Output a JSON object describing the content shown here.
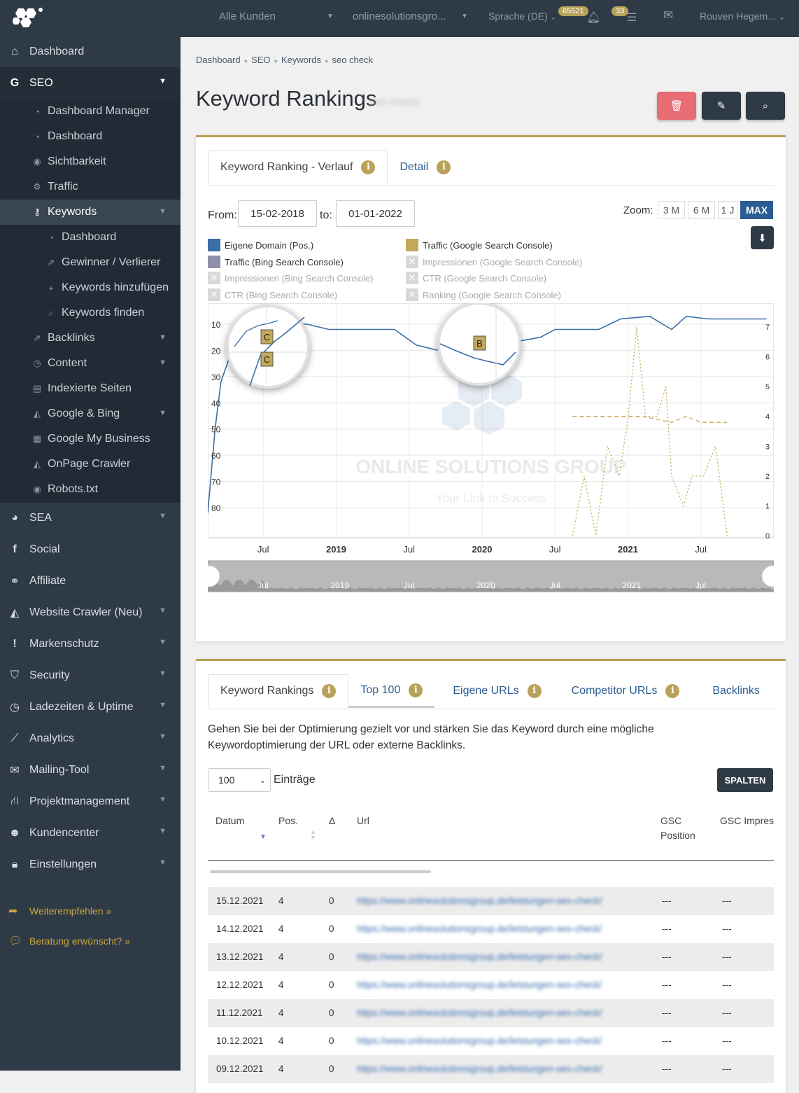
{
  "topbar": {
    "client": "Alle Kunden",
    "project": "onlinesolutionsgro...",
    "language": "Sprache (DE)",
    "notif_count": "65521",
    "task_count": "33",
    "user": "Rouven Hegem..."
  },
  "sidebar": {
    "top": [
      {
        "label": "Dashboard",
        "icon": "home-icon"
      },
      {
        "label": "SEO",
        "icon": "google-icon"
      }
    ],
    "seo_sub": [
      {
        "label": "Dashboard Manager"
      },
      {
        "label": "Dashboard"
      },
      {
        "label": "Sichtbarkeit"
      },
      {
        "label": "Traffic"
      },
      {
        "label": "Keywords"
      }
    ],
    "keywords_sub": [
      {
        "label": "Dashboard"
      },
      {
        "label": "Gewinner / Verlierer"
      },
      {
        "label": "Keywords hinzufügen"
      },
      {
        "label": "Keywords finden"
      }
    ],
    "seo_sub2": [
      {
        "label": "Backlinks"
      },
      {
        "label": "Content"
      },
      {
        "label": "Indexierte Seiten"
      },
      {
        "label": "Google & Bing"
      },
      {
        "label": "Google My Business"
      },
      {
        "label": "OnPage Crawler"
      },
      {
        "label": "Robots.txt"
      }
    ],
    "bottom": [
      {
        "label": "SEA"
      },
      {
        "label": "Social"
      },
      {
        "label": "Affiliate"
      },
      {
        "label": "Website Crawler (Neu)"
      },
      {
        "label": "Markenschutz"
      },
      {
        "label": "Security"
      },
      {
        "label": "Ladezeiten & Uptime"
      },
      {
        "label": "Analytics"
      },
      {
        "label": "Mailing-Tool"
      },
      {
        "label": "Projektmanagement"
      },
      {
        "label": "Kundencenter"
      },
      {
        "label": "Einstellungen"
      }
    ],
    "recommend": "Weiterempfehlen »",
    "consult": "Beratung erwünscht? »"
  },
  "breadcrumb": [
    "Dashboard",
    "SEO",
    "Keywords",
    "seo check"
  ],
  "page": {
    "title": "Keyword Rankings",
    "subtitle": "(seo check)"
  },
  "chart_panel": {
    "tabs": [
      "Keyword Ranking - Verlauf",
      "Detail"
    ],
    "from_label": "From:",
    "from": "15-02-2018",
    "to_label": "to:",
    "to": "01-01-2022",
    "zoom_label": "Zoom:",
    "zoom": [
      "3 M",
      "6 M",
      "1 J",
      "MAX"
    ],
    "legend": [
      {
        "label": "Eigene Domain (Pos.)",
        "color": "#3b6ea5",
        "on": true
      },
      {
        "label": "Traffic (Google Search Console)",
        "color": "#c2a95a",
        "on": true
      },
      {
        "label": "Traffic (Bing Search Console)",
        "color": "#8e90a8",
        "on": true
      },
      {
        "label": "Impressionen (Google Search Console)",
        "on": false
      },
      {
        "label": "Impressionen (Bing Search Console)",
        "on": false
      },
      {
        "label": "CTR (Google Search Console)",
        "on": false
      },
      {
        "label": "CTR (Bing Search Console)",
        "on": false
      },
      {
        "label": "Ranking (Google Search Console)",
        "on": false
      }
    ],
    "watermark": {
      "name": "ONLINE SOLUTIONS GROUP",
      "tagline": "Your Link to Success"
    }
  },
  "chart_data": {
    "type": "line",
    "x_ticks": [
      "Jul",
      "2019",
      "Jul",
      "2020",
      "Jul",
      "2021",
      "Jul"
    ],
    "y_left_ticks": [
      "10",
      "20",
      "30",
      "40",
      "50",
      "60",
      "70",
      "80"
    ],
    "y_right_ticks": [
      "7",
      "6",
      "5",
      "4",
      "3",
      "2",
      "1",
      "0"
    ],
    "navigator_ticks": [
      "Jul",
      "2019",
      "Jul",
      "2020",
      "Jul",
      "2021",
      "Jul"
    ],
    "markers": [
      "C",
      "C",
      "B"
    ],
    "series": [
      {
        "name": "Eigene Domain (Pos.)",
        "axis": "left",
        "points": [
          [
            2018.12,
            82
          ],
          [
            2018.17,
            50
          ],
          [
            2018.21,
            32
          ],
          [
            2018.26,
            24
          ],
          [
            2018.3,
            21
          ],
          [
            2018.36,
            17
          ],
          [
            2018.42,
            12
          ],
          [
            2018.48,
            8
          ],
          [
            2018.55,
            8
          ],
          [
            2018.62,
            10
          ],
          [
            2018.8,
            10
          ],
          [
            2018.95,
            12
          ],
          [
            2019.2,
            12
          ],
          [
            2019.4,
            12
          ],
          [
            2019.55,
            18
          ],
          [
            2019.7,
            20
          ],
          [
            2019.85,
            23
          ],
          [
            2020.02,
            24
          ],
          [
            2020.1,
            20
          ],
          [
            2020.2,
            17
          ],
          [
            2020.4,
            15
          ],
          [
            2020.5,
            12
          ],
          [
            2020.62,
            12
          ],
          [
            2020.8,
            12
          ],
          [
            2020.95,
            8
          ],
          [
            2021.15,
            7
          ],
          [
            2021.3,
            12
          ],
          [
            2021.4,
            7
          ],
          [
            2021.55,
            8
          ],
          [
            2021.8,
            8
          ],
          [
            2021.95,
            8
          ]
        ]
      },
      {
        "name": "Traffic (Google Search Console)",
        "axis": "right",
        "style": "dotted",
        "points": [
          [
            2020.62,
            0
          ],
          [
            2020.7,
            2
          ],
          [
            2020.78,
            0
          ],
          [
            2020.86,
            3
          ],
          [
            2020.94,
            2
          ],
          [
            2021.0,
            3.9
          ],
          [
            2021.06,
            7
          ],
          [
            2021.12,
            4
          ],
          [
            2021.2,
            4
          ],
          [
            2021.26,
            5
          ],
          [
            2021.3,
            2
          ],
          [
            2021.38,
            1
          ],
          [
            2021.44,
            2
          ],
          [
            2021.52,
            2
          ],
          [
            2021.6,
            3
          ],
          [
            2021.68,
            0
          ]
        ]
      },
      {
        "name": "Traffic (Google Search Console) trend",
        "axis": "right",
        "style": "dashed",
        "points": [
          [
            2020.62,
            4
          ],
          [
            2021.1,
            4
          ],
          [
            2021.3,
            3.8
          ],
          [
            2021.4,
            4
          ],
          [
            2021.5,
            3.8
          ],
          [
            2021.68,
            3.8
          ]
        ]
      }
    ]
  },
  "table_panel": {
    "tabs": [
      "Keyword Rankings",
      "Top 100",
      "Eigene URLs",
      "Competitor URLs",
      "Backlinks"
    ],
    "description": "Gehen Sie bei der Optimierung gezielt vor und stärken Sie das Keyword durch eine mögliche Keywordoptimierung der URL oder externe Backlinks.",
    "entries_value": "100",
    "entries_label": "Einträge",
    "columns_button": "SPALTEN",
    "headers": [
      "Datum",
      "Pos.",
      "Δ",
      "Url",
      "GSC Position",
      "GSC Impressionen"
    ],
    "rows": [
      {
        "date": "15.12.2021",
        "pos": "4",
        "delta": "0",
        "url": "https://www.onlinesolutionsgroup.de/leistungen-seo-check/",
        "gsc_pos": "---",
        "gsc_imp": "---"
      },
      {
        "date": "14.12.2021",
        "pos": "4",
        "delta": "0",
        "url": "https://www.onlinesolutionsgroup.de/leistungen-seo-check/",
        "gsc_pos": "---",
        "gsc_imp": "---"
      },
      {
        "date": "13.12.2021",
        "pos": "4",
        "delta": "0",
        "url": "https://www.onlinesolutionsgroup.de/leistungen-seo-check/",
        "gsc_pos": "---",
        "gsc_imp": "---"
      },
      {
        "date": "12.12.2021",
        "pos": "4",
        "delta": "0",
        "url": "https://www.onlinesolutionsgroup.de/leistungen-seo-check/",
        "gsc_pos": "---",
        "gsc_imp": "---"
      },
      {
        "date": "11.12.2021",
        "pos": "4",
        "delta": "0",
        "url": "https://www.onlinesolutionsgroup.de/leistungen-seo-check/",
        "gsc_pos": "---",
        "gsc_imp": "---"
      },
      {
        "date": "10.12.2021",
        "pos": "4",
        "delta": "0",
        "url": "https://www.onlinesolutionsgroup.de/leistungen-seo-check/",
        "gsc_pos": "---",
        "gsc_imp": "---"
      },
      {
        "date": "09.12.2021",
        "pos": "4",
        "delta": "0",
        "url": "https://www.onlinesolutionsgroup.de/leistungen-seo-check/",
        "gsc_pos": "---",
        "gsc_imp": "---"
      }
    ]
  }
}
